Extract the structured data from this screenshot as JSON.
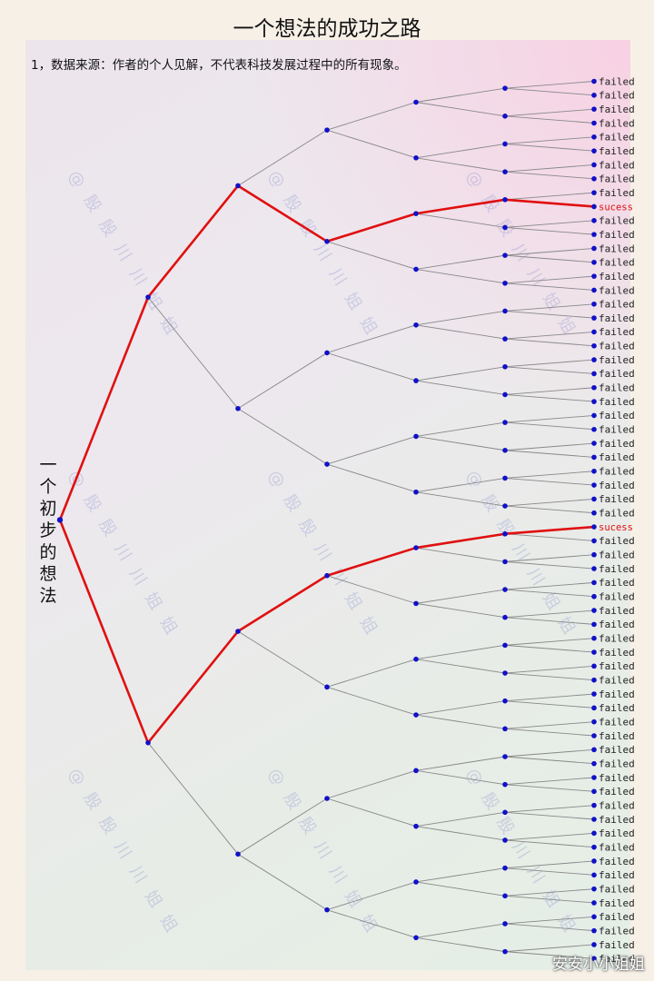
{
  "title": "一个想法的成功之路",
  "note": "1，数据来源：作者的个人见解，不代表科技发展过程中的所有现象。",
  "root_label": "一个初步的想法",
  "leaf_fail_label": "failed",
  "leaf_success_label": "sucess",
  "success_leaves": [
    9,
    32
  ],
  "watermark_text": "@ 殷 殷 川 川 姐 姐",
  "corner_mark": "安安小小姐姐",
  "colors": {
    "edge": "#888888",
    "highlight": "#e01010",
    "node": "#1010c8",
    "fail_text": "#222222",
    "success_text": "#e01010"
  }
}
